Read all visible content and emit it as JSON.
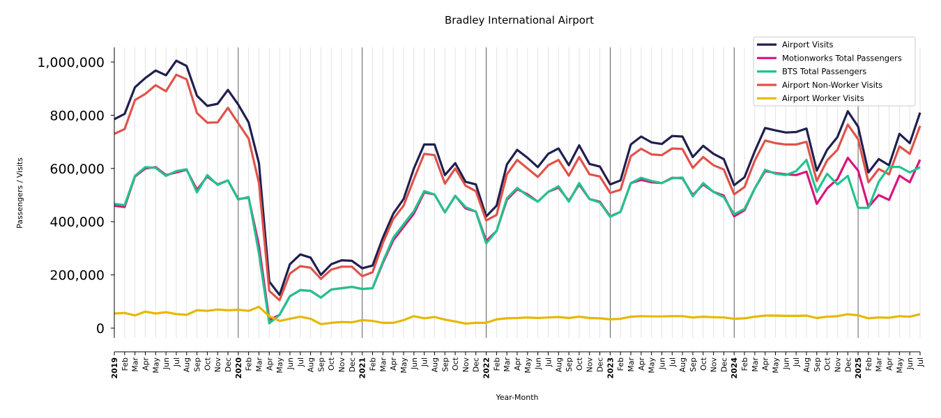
{
  "chart_data": {
    "type": "line",
    "title": "Bradley International Airport",
    "xlabel": "Year-Month",
    "ylabel": "Passengers / Visits",
    "ylim": [
      -35000,
      1055000
    ],
    "yticks": [
      0,
      200000,
      400000,
      600000,
      800000,
      1000000
    ],
    "ytick_labels": [
      "0",
      "200,000",
      "400,000",
      "600,000",
      "800,000",
      "1,000,000"
    ],
    "x_start": "2019-01",
    "x_end": "2025-07",
    "month_labels": [
      "Jan",
      "Feb",
      "Mar",
      "Apr",
      "May",
      "Jun",
      "Jul",
      "Aug",
      "Sep",
      "Oct",
      "Nov",
      "Dec"
    ],
    "grid": "vertical monthly, bold year lines",
    "legend_position": "top-right",
    "series": [
      {
        "name": "Airport Visits",
        "color": "#1f1f4f",
        "values": [
          785,
          805,
          905,
          940,
          968,
          950,
          1005,
          985,
          873,
          835,
          843,
          895,
          840,
          773,
          620,
          175,
          125,
          240,
          277,
          265,
          200,
          240,
          255,
          253,
          225,
          235,
          340,
          430,
          485,
          600,
          690,
          690,
          575,
          620,
          550,
          540,
          420,
          460,
          615,
          670,
          640,
          605,
          655,
          675,
          612,
          687,
          617,
          607,
          540,
          555,
          690,
          720,
          698,
          692,
          722,
          720,
          643,
          685,
          655,
          635,
          537,
          567,
          665,
          752,
          743,
          735,
          737,
          750,
          592,
          670,
          718,
          815,
          757,
          585,
          635,
          612,
          730,
          695,
          810
        ]
      },
      {
        "name": "Motionworks Total Passengers",
        "color": "#d8157d",
        "values": [
          460,
          455,
          570,
          600,
          605,
          575,
          585,
          595,
          520,
          570,
          540,
          555,
          485,
          490,
          310,
          30,
          50,
          120,
          143,
          140,
          115,
          145,
          150,
          155,
          147,
          150,
          245,
          330,
          380,
          430,
          510,
          502,
          435,
          497,
          450,
          438,
          328,
          365,
          482,
          522,
          503,
          475,
          512,
          528,
          478,
          540,
          485,
          475,
          420,
          437,
          545,
          557,
          548,
          545,
          565,
          563,
          500,
          540,
          512,
          498,
          420,
          443,
          525,
          590,
          583,
          578,
          575,
          588,
          467,
          525,
          560,
          640,
          592,
          455,
          500,
          482,
          573,
          548,
          633
        ]
      },
      {
        "name": "BTS Total Passengers",
        "color": "#22c38e",
        "values": [
          467,
          462,
          572,
          605,
          602,
          572,
          590,
          597,
          510,
          575,
          538,
          555,
          483,
          493,
          280,
          18,
          50,
          120,
          143,
          140,
          115,
          145,
          150,
          155,
          147,
          150,
          250,
          340,
          390,
          440,
          515,
          502,
          435,
          497,
          455,
          438,
          318,
          365,
          488,
          527,
          498,
          475,
          512,
          533,
          475,
          545,
          485,
          472,
          418,
          437,
          545,
          565,
          553,
          545,
          563,
          566,
          495,
          545,
          512,
          492,
          428,
          448,
          525,
          595,
          580,
          575,
          590,
          632,
          512,
          580,
          540,
          572,
          452,
          452,
          550,
          605,
          606,
          585,
          605
        ]
      },
      {
        "name": "Airport Non-Worker Visits",
        "color": "#e0524a",
        "values": [
          730,
          748,
          857,
          880,
          913,
          890,
          952,
          935,
          808,
          772,
          773,
          828,
          770,
          712,
          545,
          140,
          105,
          205,
          233,
          227,
          185,
          220,
          231,
          231,
          195,
          210,
          320,
          410,
          460,
          560,
          655,
          650,
          543,
          600,
          535,
          515,
          405,
          425,
          578,
          632,
          600,
          568,
          612,
          632,
          573,
          643,
          578,
          570,
          508,
          520,
          646,
          674,
          653,
          650,
          675,
          673,
          602,
          643,
          612,
          596,
          503,
          530,
          630,
          705,
          695,
          690,
          690,
          700,
          553,
          630,
          670,
          765,
          710,
          548,
          598,
          578,
          683,
          655,
          760
        ]
      },
      {
        "name": "Airport Worker Visits",
        "color": "#e6b800",
        "values": [
          55,
          57,
          48,
          62,
          55,
          60,
          53,
          50,
          67,
          65,
          70,
          67,
          69,
          65,
          80,
          45,
          27,
          35,
          43,
          35,
          15,
          20,
          23,
          22,
          30,
          27,
          20,
          20,
          30,
          45,
          37,
          42,
          32,
          25,
          17,
          20,
          20,
          33,
          37,
          38,
          40,
          38,
          40,
          42,
          38,
          43,
          38,
          37,
          33,
          35,
          43,
          45,
          44,
          44,
          45,
          45,
          40,
          43,
          41,
          40,
          35,
          37,
          43,
          47,
          47,
          46,
          46,
          47,
          38,
          43,
          45,
          52,
          48,
          37,
          40,
          39,
          45,
          43,
          52
        ]
      }
    ],
    "value_units": "thousands"
  }
}
